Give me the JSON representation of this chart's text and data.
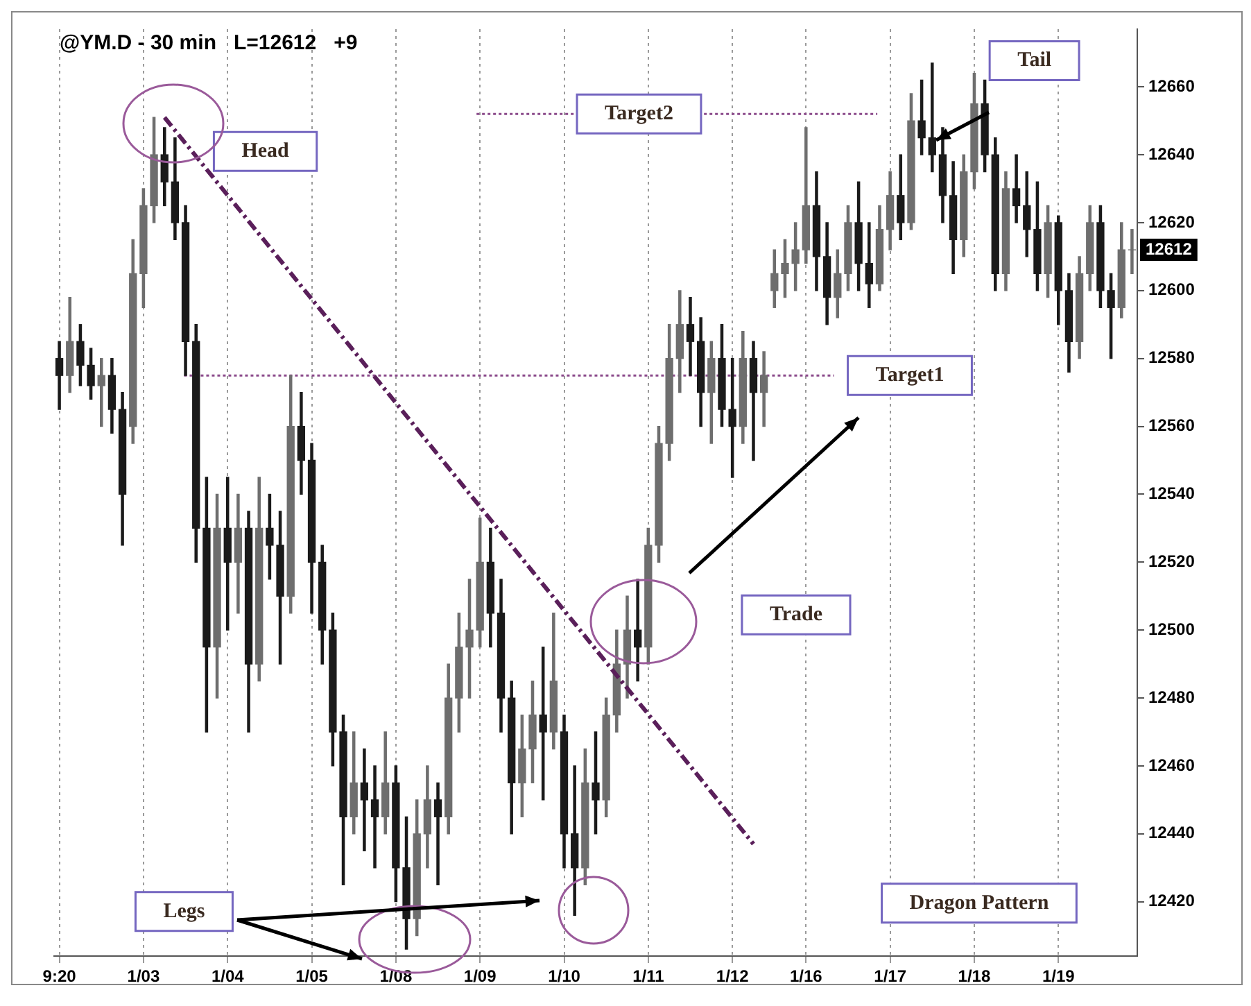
{
  "chart_data": {
    "type": "candlestick",
    "title": "@YM.D - 30 min   L=12612   +9",
    "categories": [
      "9:20",
      null,
      null,
      null,
      null,
      null,
      null,
      null,
      "1/03",
      null,
      null,
      null,
      null,
      null,
      null,
      null,
      "1/04",
      null,
      null,
      null,
      null,
      null,
      null,
      null,
      "1/05",
      null,
      null,
      null,
      null,
      null,
      null,
      null,
      "1/08",
      null,
      null,
      null,
      null,
      null,
      null,
      null,
      "1/09",
      null,
      null,
      null,
      null,
      null,
      null,
      null,
      "1/10",
      null,
      null,
      null,
      null,
      null,
      null,
      null,
      "1/11",
      null,
      null,
      null,
      null,
      null,
      null,
      null,
      "1/12",
      null,
      null,
      null,
      null,
      null,
      null,
      "1/16",
      null,
      null,
      null,
      null,
      null,
      null,
      null,
      "1/17",
      null,
      null,
      null,
      null,
      null,
      null,
      null,
      "1/18",
      null,
      null,
      null,
      null,
      null,
      null,
      null,
      "1/19",
      null,
      null,
      null,
      null,
      null,
      null,
      null
    ],
    "ohlc": [
      [
        12580,
        12585,
        12565,
        12575
      ],
      [
        12575,
        12598,
        12570,
        12585
      ],
      [
        12585,
        12590,
        12572,
        12578
      ],
      [
        12578,
        12583,
        12568,
        12572
      ],
      [
        12572,
        12580,
        12560,
        12575
      ],
      [
        12575,
        12580,
        12558,
        12565
      ],
      [
        12565,
        12570,
        12525,
        12540
      ],
      [
        12560,
        12615,
        12555,
        12605
      ],
      [
        12605,
        12630,
        12595,
        12625
      ],
      [
        12625,
        12651,
        12620,
        12640
      ],
      [
        12640,
        12648,
        12625,
        12632
      ],
      [
        12632,
        12645,
        12615,
        12620
      ],
      [
        12620,
        12625,
        12575,
        12585
      ],
      [
        12585,
        12590,
        12520,
        12530
      ],
      [
        12530,
        12545,
        12470,
        12495
      ],
      [
        12495,
        12540,
        12480,
        12530
      ],
      [
        12530,
        12545,
        12500,
        12520
      ],
      [
        12520,
        12540,
        12505,
        12530
      ],
      [
        12530,
        12535,
        12470,
        12490
      ],
      [
        12490,
        12545,
        12485,
        12530
      ],
      [
        12530,
        12540,
        12515,
        12525
      ],
      [
        12525,
        12535,
        12490,
        12510
      ],
      [
        12510,
        12575,
        12505,
        12560
      ],
      [
        12560,
        12570,
        12540,
        12550
      ],
      [
        12550,
        12555,
        12505,
        12520
      ],
      [
        12520,
        12525,
        12490,
        12500
      ],
      [
        12500,
        12505,
        12460,
        12470
      ],
      [
        12470,
        12475,
        12425,
        12445
      ],
      [
        12445,
        12470,
        12440,
        12455
      ],
      [
        12455,
        12465,
        12435,
        12450
      ],
      [
        12450,
        12460,
        12430,
        12445
      ],
      [
        12445,
        12470,
        12440,
        12455
      ],
      [
        12455,
        12460,
        12420,
        12430
      ],
      [
        12430,
        12445,
        12406,
        12415
      ],
      [
        12415,
        12450,
        12410,
        12440
      ],
      [
        12440,
        12460,
        12430,
        12450
      ],
      [
        12450,
        12455,
        12425,
        12445
      ],
      [
        12445,
        12490,
        12440,
        12480
      ],
      [
        12480,
        12505,
        12470,
        12495
      ],
      [
        12495,
        12515,
        12480,
        12500
      ],
      [
        12500,
        12533,
        12495,
        12520
      ],
      [
        12520,
        12530,
        12495,
        12505
      ],
      [
        12505,
        12515,
        12470,
        12480
      ],
      [
        12480,
        12485,
        12440,
        12455
      ],
      [
        12455,
        12475,
        12445,
        12465
      ],
      [
        12465,
        12485,
        12455,
        12475
      ],
      [
        12475,
        12495,
        12450,
        12470
      ],
      [
        12470,
        12505,
        12465,
        12485
      ],
      [
        12470,
        12475,
        12430,
        12440
      ],
      [
        12440,
        12460,
        12416,
        12430
      ],
      [
        12430,
        12465,
        12425,
        12455
      ],
      [
        12455,
        12470,
        12440,
        12450
      ],
      [
        12450,
        12480,
        12445,
        12475
      ],
      [
        12475,
        12500,
        12470,
        12490
      ],
      [
        12490,
        12510,
        12480,
        12500
      ],
      [
        12500,
        12515,
        12485,
        12495
      ],
      [
        12495,
        12530,
        12490,
        12525
      ],
      [
        12525,
        12560,
        12520,
        12555
      ],
      [
        12555,
        12590,
        12550,
        12580
      ],
      [
        12580,
        12600,
        12570,
        12590
      ],
      [
        12590,
        12598,
        12575,
        12585
      ],
      [
        12585,
        12592,
        12560,
        12570
      ],
      [
        12570,
        12585,
        12555,
        12580
      ],
      [
        12580,
        12590,
        12560,
        12565
      ],
      [
        12565,
        12580,
        12545,
        12560
      ],
      [
        12560,
        12588,
        12555,
        12580
      ],
      [
        12580,
        12585,
        12550,
        12570
      ],
      [
        12570,
        12582,
        12560,
        12575
      ],
      [
        12600,
        12612,
        12595,
        12605
      ],
      [
        12605,
        12615,
        12598,
        12608
      ],
      [
        12608,
        12620,
        12600,
        12612
      ],
      [
        12612,
        12648,
        12608,
        12625
      ],
      [
        12625,
        12635,
        12600,
        12610
      ],
      [
        12610,
        12620,
        12590,
        12598
      ],
      [
        12598,
        12612,
        12592,
        12605
      ],
      [
        12605,
        12625,
        12600,
        12620
      ],
      [
        12620,
        12632,
        12600,
        12608
      ],
      [
        12608,
        12620,
        12595,
        12602
      ],
      [
        12602,
        12625,
        12600,
        12618
      ],
      [
        12618,
        12635,
        12612,
        12628
      ],
      [
        12628,
        12640,
        12615,
        12620
      ],
      [
        12620,
        12658,
        12618,
        12650
      ],
      [
        12650,
        12662,
        12640,
        12645
      ],
      [
        12645,
        12667,
        12635,
        12640
      ],
      [
        12640,
        12648,
        12620,
        12628
      ],
      [
        12628,
        12638,
        12605,
        12615
      ],
      [
        12615,
        12640,
        12610,
        12635
      ],
      [
        12635,
        12664,
        12630,
        12655
      ],
      [
        12655,
        12662,
        12635,
        12640
      ],
      [
        12640,
        12645,
        12600,
        12605
      ],
      [
        12605,
        12635,
        12600,
        12630
      ],
      [
        12630,
        12640,
        12620,
        12625
      ],
      [
        12625,
        12635,
        12610,
        12618
      ],
      [
        12618,
        12632,
        12600,
        12605
      ],
      [
        12605,
        12625,
        12598,
        12620
      ],
      [
        12620,
        12622,
        12590,
        12600
      ],
      [
        12600,
        12605,
        12576,
        12585
      ],
      [
        12585,
        12610,
        12580,
        12605
      ],
      [
        12605,
        12625,
        12600,
        12620
      ],
      [
        12620,
        12625,
        12595,
        12600
      ],
      [
        12600,
        12605,
        12580,
        12595
      ],
      [
        12595,
        12620,
        12592,
        12612
      ],
      [
        12612,
        12618,
        12605,
        12612
      ]
    ],
    "colors": [
      "#1a1a1a",
      "#6e6e6e",
      "#1a1a1a",
      "#1a1a1a",
      "#6e6e6e",
      "#1a1a1a",
      "#1a1a1a",
      "#6e6e6e",
      "#6e6e6e",
      "#6e6e6e",
      "#1a1a1a",
      "#1a1a1a",
      "#1a1a1a",
      "#1a1a1a",
      "#1a1a1a",
      "#6e6e6e",
      "#1a1a1a",
      "#6e6e6e",
      "#1a1a1a",
      "#6e6e6e",
      "#1a1a1a",
      "#1a1a1a",
      "#6e6e6e",
      "#1a1a1a",
      "#1a1a1a",
      "#1a1a1a",
      "#1a1a1a",
      "#1a1a1a",
      "#6e6e6e",
      "#1a1a1a",
      "#1a1a1a",
      "#6e6e6e",
      "#1a1a1a",
      "#1a1a1a",
      "#6e6e6e",
      "#6e6e6e",
      "#1a1a1a",
      "#6e6e6e",
      "#6e6e6e",
      "#6e6e6e",
      "#6e6e6e",
      "#1a1a1a",
      "#1a1a1a",
      "#1a1a1a",
      "#6e6e6e",
      "#6e6e6e",
      "#1a1a1a",
      "#6e6e6e",
      "#1a1a1a",
      "#1a1a1a",
      "#6e6e6e",
      "#1a1a1a",
      "#6e6e6e",
      "#6e6e6e",
      "#6e6e6e",
      "#1a1a1a",
      "#6e6e6e",
      "#6e6e6e",
      "#6e6e6e",
      "#6e6e6e",
      "#1a1a1a",
      "#1a1a1a",
      "#6e6e6e",
      "#1a1a1a",
      "#1a1a1a",
      "#6e6e6e",
      "#1a1a1a",
      "#6e6e6e",
      "#6e6e6e",
      "#6e6e6e",
      "#6e6e6e",
      "#6e6e6e",
      "#1a1a1a",
      "#1a1a1a",
      "#6e6e6e",
      "#6e6e6e",
      "#1a1a1a",
      "#1a1a1a",
      "#6e6e6e",
      "#6e6e6e",
      "#1a1a1a",
      "#6e6e6e",
      "#1a1a1a",
      "#1a1a1a",
      "#1a1a1a",
      "#1a1a1a",
      "#6e6e6e",
      "#6e6e6e",
      "#1a1a1a",
      "#1a1a1a",
      "#6e6e6e",
      "#1a1a1a",
      "#1a1a1a",
      "#1a1a1a",
      "#6e6e6e",
      "#1a1a1a",
      "#1a1a1a",
      "#6e6e6e",
      "#6e6e6e",
      "#1a1a1a",
      "#1a1a1a",
      "#6e6e6e",
      "#6e6e6e"
    ],
    "series": [
      {
        "type": "line",
        "values": [
          null,
          null,
          null,
          null,
          null,
          null,
          null,
          null,
          null,
          null,
          12651,
          null,
          null,
          null,
          null,
          null,
          null,
          null,
          null,
          null,
          null,
          null,
          null,
          null,
          null,
          null,
          null,
          null,
          null,
          null,
          null,
          null,
          null,
          null,
          null,
          null,
          null,
          null,
          null,
          null,
          null,
          null,
          null,
          null,
          null,
          null,
          null,
          null,
          null,
          null,
          null,
          null,
          null,
          null,
          null,
          null,
          null,
          null,
          null,
          null,
          null,
          null,
          null,
          null,
          null,
          null,
          12437,
          null,
          null,
          null,
          null,
          null,
          null,
          null,
          null,
          null,
          null,
          null,
          null,
          null,
          null,
          null,
          null,
          null,
          null,
          null,
          null,
          null,
          null,
          null,
          null,
          null,
          null,
          null,
          null,
          null,
          null,
          null,
          null,
          null,
          null,
          null,
          null
        ],
        "color": "#5a1f5a",
        "line_style": "dashed"
      }
    ],
    "ylim": [
      12404,
      12677
    ],
    "yticks": [
      12420,
      12440,
      12460,
      12480,
      12500,
      12520,
      12540,
      12560,
      12580,
      12600,
      12620,
      12640,
      12660
    ],
    "grid": "x",
    "ref_lines": [
      {
        "axis": "y",
        "value": 12575,
        "label": "Target1",
        "color": "#8a4a8a",
        "line_style": "dotted"
      },
      {
        "axis": "y",
        "value": 12652,
        "label": "Target2",
        "color": "#8a4a8a",
        "line_style": "dotted"
      }
    ],
    "annotations": [
      "Head",
      "Tail",
      "Trade",
      "Legs",
      "Dragon Pattern",
      "12612"
    ]
  }
}
